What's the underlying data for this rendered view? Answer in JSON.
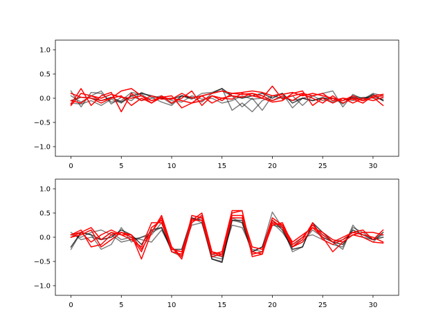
{
  "chart_data": [
    {
      "type": "line",
      "title": "",
      "xlabel": "",
      "ylabel": "",
      "xlim": [
        -1.55,
        32.55
      ],
      "ylim": [
        -1.2,
        1.2
      ],
      "xticks": [
        0,
        5,
        10,
        15,
        20,
        25,
        30
      ],
      "yticks": [
        -1.0,
        -0.5,
        0.0,
        0.5,
        1.0
      ],
      "xtick_labels": [
        "0",
        "5",
        "10",
        "15",
        "20",
        "25",
        "30"
      ],
      "ytick_labels": [
        "−1.0",
        "−0.5",
        "0.0",
        "0.5",
        "1.0"
      ],
      "grid": false,
      "legend": "none",
      "x": [
        0,
        1,
        2,
        3,
        4,
        5,
        6,
        7,
        8,
        9,
        10,
        11,
        12,
        13,
        14,
        15,
        16,
        17,
        18,
        19,
        20,
        21,
        22,
        23,
        24,
        25,
        26,
        27,
        28,
        29,
        30,
        31
      ],
      "series": [
        {
          "color": "#000000",
          "opacity": 0.5,
          "values": [
            0.15,
            -0.18,
            0.12,
            0.1,
            -0.08,
            -0.05,
            0.12,
            0.08,
            -0.05,
            0.02,
            -0.12,
            0.05,
            -0.02,
            0.1,
            0.12,
            0.2,
            -0.25,
            -0.1,
            -0.28,
            -0.05,
            0.05,
            0.1,
            -0.2,
            0.0,
            0.05,
            0.1,
            0.15,
            -0.18,
            0.08,
            -0.02,
            0.1,
            0.05
          ]
        },
        {
          "color": "#000000",
          "opacity": 0.5,
          "values": [
            0.05,
            -0.08,
            0.05,
            0.15,
            -0.12,
            0.02,
            -0.05,
            0.12,
            0.02,
            -0.08,
            -0.15,
            0.05,
            0.02,
            -0.08,
            0.1,
            0.15,
            0.05,
            -0.18,
            0.0,
            -0.25,
            0.05,
            0.0,
            0.05,
            -0.15,
            0.05,
            -0.05,
            0.0,
            -0.12,
            0.05,
            0.0,
            0.05,
            -0.05
          ]
        },
        {
          "color": "#000000",
          "opacity": 0.5,
          "values": [
            -0.1,
            -0.12,
            -0.05,
            -0.15,
            -0.02,
            -0.1,
            0.05,
            -0.05,
            0.0,
            0.05,
            -0.05,
            -0.08,
            0.05,
            -0.02,
            0.0,
            -0.1,
            -0.05,
            0.05,
            -0.02,
            0.0,
            -0.05,
            0.02,
            -0.05,
            0.0,
            -0.05,
            0.02,
            -0.08,
            0.0,
            -0.05,
            0.02,
            0.0,
            -0.02
          ]
        },
        {
          "color": "#000000",
          "opacity": 0.75,
          "values": [
            -0.05,
            0.02,
            0.0,
            -0.05,
            0.02,
            -0.08,
            0.05,
            0.1,
            0.05,
            0.0,
            -0.02,
            0.05,
            0.0,
            0.05,
            0.1,
            0.2,
            0.05,
            0.0,
            0.05,
            0.1,
            0.0,
            0.1,
            -0.1,
            0.0,
            -0.05,
            0.0,
            0.0,
            -0.05,
            0.02,
            -0.05,
            0.08,
            -0.05
          ]
        },
        {
          "color": "#ff0000",
          "opacity": 1,
          "values": [
            0.1,
            0.02,
            0.0,
            -0.1,
            0.0,
            0.15,
            0.2,
            0.05,
            -0.05,
            0.02,
            -0.02,
            0.1,
            0.0,
            0.05,
            0.1,
            0.15,
            0.1,
            0.12,
            0.15,
            0.12,
            0.05,
            0.08,
            0.12,
            0.05,
            0.1,
            0.05,
            0.0,
            -0.05,
            0.05,
            -0.05,
            0.02,
            0.05
          ]
        },
        {
          "color": "#ff0000",
          "opacity": 1,
          "values": [
            -0.12,
            0.2,
            -0.15,
            0.05,
            0.12,
            -0.28,
            0.1,
            -0.05,
            0.05,
            -0.02,
            0.0,
            -0.05,
            -0.1,
            -0.05,
            0.05,
            0.0,
            -0.02,
            0.1,
            0.05,
            0.0,
            0.25,
            -0.02,
            0.05,
            0.1,
            0.05,
            0.1,
            -0.05,
            0.0,
            -0.1,
            0.0,
            -0.05,
            0.02
          ]
        },
        {
          "color": "#ff0000",
          "opacity": 1,
          "values": [
            -0.15,
            0.1,
            0.05,
            -0.05,
            0.0,
            0.05,
            -0.15,
            0.0,
            -0.1,
            0.05,
            -0.1,
            0.0,
            0.15,
            -0.15,
            0.05,
            -0.05,
            0.1,
            0.08,
            0.1,
            0.05,
            -0.05,
            0.05,
            -0.05,
            0.08,
            0.0,
            -0.1,
            0.05,
            -0.1,
            0.0,
            -0.05,
            0.02,
            -0.15
          ]
        },
        {
          "color": "#ff0000",
          "opacity": 1,
          "values": [
            -0.05,
            -0.1,
            0.05,
            0.0,
            0.08,
            0.02,
            0.0,
            0.05,
            -0.1,
            0.02,
            0.05,
            -0.2,
            -0.1,
            0.05,
            -0.1,
            0.0,
            0.05,
            0.02,
            0.1,
            0.0,
            -0.08,
            -0.05,
            0.1,
            0.15,
            -0.15,
            0.0,
            -0.1,
            0.0,
            -0.02,
            -0.1,
            0.05,
            0.08
          ]
        }
      ]
    },
    {
      "type": "line",
      "title": "",
      "xlabel": "",
      "ylabel": "",
      "xlim": [
        -1.55,
        32.55
      ],
      "ylim": [
        -1.2,
        1.2
      ],
      "xticks": [
        0,
        5,
        10,
        15,
        20,
        25,
        30
      ],
      "yticks": [
        -1.0,
        -0.5,
        0.0,
        0.5,
        1.0
      ],
      "xtick_labels": [
        "0",
        "5",
        "10",
        "15",
        "20",
        "25",
        "30"
      ],
      "ytick_labels": [
        "−1.0",
        "−0.5",
        "0.0",
        "0.5",
        "1.0"
      ],
      "grid": false,
      "legend": "none",
      "x": [
        0,
        1,
        2,
        3,
        4,
        5,
        6,
        7,
        8,
        9,
        10,
        11,
        12,
        13,
        14,
        15,
        16,
        17,
        18,
        19,
        20,
        21,
        22,
        23,
        24,
        25,
        26,
        27,
        28,
        29,
        30,
        31
      ],
      "series": [
        {
          "color": "#000000",
          "opacity": 0.5,
          "values": [
            -0.25,
            0.1,
            0.05,
            -0.25,
            -0.15,
            0.2,
            -0.1,
            0.0,
            0.05,
            0.3,
            -0.3,
            -0.4,
            0.4,
            0.3,
            -0.45,
            -0.5,
            0.35,
            0.3,
            -0.3,
            -0.2,
            0.52,
            0.2,
            -0.3,
            -0.2,
            0.3,
            0.0,
            -0.1,
            -0.25,
            0.25,
            0.0,
            -0.1,
            0.1
          ]
        },
        {
          "color": "#000000",
          "opacity": 0.5,
          "values": [
            0.05,
            0.0,
            0.1,
            0.15,
            0.05,
            -0.1,
            -0.05,
            0.0,
            0.1,
            0.2,
            -0.3,
            -0.35,
            0.35,
            0.4,
            -0.4,
            -0.45,
            0.4,
            0.3,
            -0.35,
            -0.3,
            0.3,
            0.1,
            -0.2,
            0.0,
            0.05,
            -0.05,
            -0.15,
            -0.2,
            0.2,
            0.1,
            -0.05,
            0.05
          ]
        },
        {
          "color": "#000000",
          "opacity": 0.5,
          "values": [
            0.1,
            -0.05,
            0.0,
            -0.05,
            0.1,
            -0.05,
            0.0,
            -0.05,
            -0.1,
            0.15,
            -0.25,
            -0.3,
            0.25,
            0.3,
            -0.35,
            -0.4,
            0.25,
            0.2,
            -0.25,
            -0.3,
            0.25,
            0.2,
            -0.2,
            -0.1,
            0.15,
            0.0,
            -0.1,
            -0.05,
            0.05,
            0.0,
            -0.05,
            0.1
          ]
        },
        {
          "color": "#000000",
          "opacity": 0.75,
          "values": [
            -0.2,
            0.1,
            0.05,
            -0.05,
            0.0,
            0.15,
            0.05,
            -0.15,
            0.15,
            0.2,
            -0.25,
            -0.25,
            0.4,
            0.35,
            -0.45,
            -0.52,
            0.35,
            0.35,
            -0.3,
            -0.2,
            0.35,
            0.15,
            -0.25,
            -0.2,
            0.3,
            0.1,
            -0.1,
            -0.15,
            0.15,
            0.05,
            -0.05,
            0.0
          ]
        },
        {
          "color": "#ff0000",
          "opacity": 1,
          "values": [
            0.05,
            0.15,
            -0.2,
            -0.15,
            0.05,
            0.1,
            0.05,
            -0.45,
            0.1,
            0.45,
            -0.2,
            -0.45,
            0.3,
            0.45,
            -0.35,
            -0.3,
            0.55,
            0.55,
            -0.35,
            -0.3,
            0.25,
            0.3,
            -0.15,
            0.0,
            0.25,
            0.05,
            -0.1,
            0.0,
            0.1,
            0.15,
            -0.05,
            0.15
          ]
        },
        {
          "color": "#ff0000",
          "opacity": 1,
          "values": [
            0.0,
            0.1,
            0.2,
            -0.05,
            0.1,
            0.05,
            -0.05,
            -0.2,
            0.3,
            0.3,
            -0.25,
            -0.3,
            0.35,
            0.35,
            -0.4,
            -0.35,
            0.45,
            0.45,
            -0.2,
            -0.25,
            0.4,
            0.25,
            -0.1,
            0.05,
            0.2,
            0.1,
            -0.05,
            -0.1,
            0.05,
            0.1,
            0.1,
            0.05
          ]
        },
        {
          "color": "#ff0000",
          "opacity": 1,
          "values": [
            0.05,
            0.1,
            -0.1,
            0.05,
            0.15,
            0.05,
            0.05,
            -0.25,
            0.1,
            0.4,
            -0.3,
            -0.35,
            0.35,
            0.5,
            -0.3,
            -0.4,
            0.4,
            0.4,
            -0.3,
            -0.35,
            0.3,
            0.25,
            -0.2,
            -0.05,
            0.3,
            -0.05,
            -0.15,
            -0.05,
            0.1,
            0.05,
            0.0,
            -0.1
          ]
        },
        {
          "color": "#ff0000",
          "opacity": 1,
          "values": [
            0.0,
            0.05,
            0.15,
            -0.2,
            -0.05,
            0.1,
            0.0,
            -0.3,
            0.2,
            0.35,
            -0.2,
            -0.4,
            0.45,
            0.4,
            -0.3,
            -0.35,
            0.5,
            0.55,
            -0.4,
            -0.35,
            0.35,
            0.2,
            -0.2,
            -0.1,
            0.2,
            0.0,
            -0.3,
            -0.1,
            0.05,
            0.0,
            -0.1,
            -0.12
          ]
        }
      ]
    }
  ]
}
